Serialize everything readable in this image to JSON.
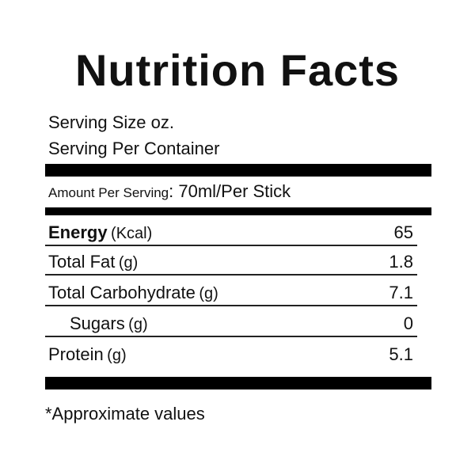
{
  "title": "Nutrition Facts",
  "serving_size": "Serving Size oz.",
  "serving_per_container": "Serving Per Container",
  "amount_label": "Amount Per Serving",
  "amount_value": ": 70ml/Per Stick",
  "rows": [
    {
      "name": "Energy",
      "unit": "(Kcal)",
      "value": 65
    },
    {
      "name": "Total Fat",
      "unit": "(g)",
      "value": 1.8
    },
    {
      "name": "Total Carbohydrate",
      "unit": "(g)",
      "value": 7.1
    },
    {
      "name": "Sugars",
      "unit": "(g)",
      "value": 0
    },
    {
      "name": "Protein",
      "unit": "(g)",
      "value": 5.1
    }
  ],
  "footnote": "*Approximate values"
}
